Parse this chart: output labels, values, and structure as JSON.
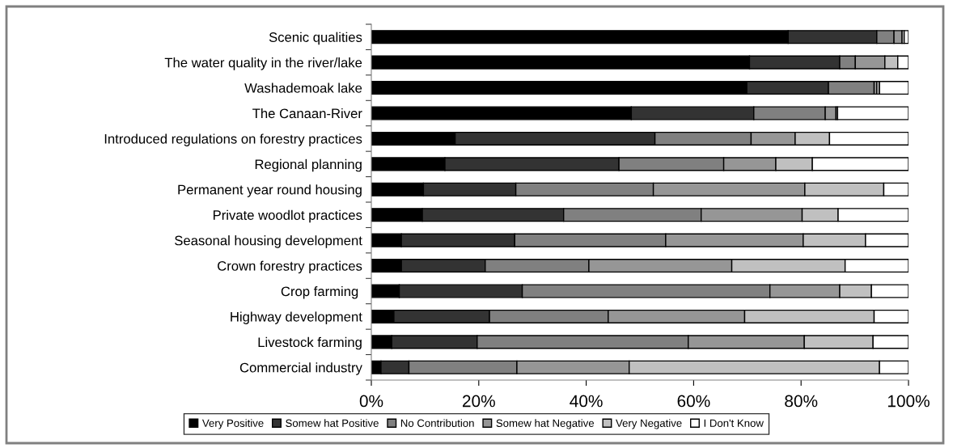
{
  "chart_data": {
    "type": "bar",
    "orientation": "horizontal",
    "stacked": true,
    "categories": [
      "Scenic qualities",
      "The water quality in the river/lake",
      "Washademoak lake",
      "The Canaan-River",
      "Introduced regulations on forestry practices",
      "Regional planning",
      "Permanent year round housing",
      "Private woodlot practices",
      "Seasonal housing development",
      "Crown forestry practices",
      "Crop farming ",
      "Highway development",
      "Livestock farming",
      "Commercial industry"
    ],
    "series": [
      {
        "name": "Very Positive",
        "color": "#000000",
        "values": [
          77.6,
          70.4,
          69.9,
          48.4,
          15.6,
          13.7,
          9.7,
          9.5,
          5.6,
          5.6,
          5.2,
          4.2,
          3.8,
          1.8
        ]
      },
      {
        "name": "Somew hat Positive",
        "color": "#333333",
        "values": [
          16.5,
          16.8,
          15.2,
          22.8,
          37.2,
          32.4,
          17.2,
          26.3,
          21.1,
          15.6,
          22.9,
          17.8,
          15.9,
          5.2
        ]
      },
      {
        "name": "No Contribution",
        "color": "#808080",
        "values": [
          3.2,
          2.9,
          8.5,
          13.3,
          17.9,
          19.5,
          25.6,
          25.6,
          28.1,
          19.3,
          46.1,
          22.1,
          39.3,
          20.1
        ]
      },
      {
        "name": "Somew hat Negative",
        "color": "#969696",
        "values": [
          1.5,
          5.5,
          0.5,
          2.0,
          8.2,
          9.7,
          28.2,
          18.8,
          25.6,
          26.6,
          13.0,
          25.4,
          21.6,
          20.9
        ]
      },
      {
        "name": "Very Negative",
        "color": "#c0c0c0",
        "values": [
          0.4,
          2.4,
          0.5,
          0.3,
          6.4,
          6.8,
          14.7,
          6.7,
          11.6,
          21.1,
          5.9,
          24.1,
          12.8,
          46.6
        ]
      },
      {
        "name": "I Don't Know",
        "color": "#ffffff",
        "values": [
          0.8,
          2.0,
          5.4,
          13.2,
          14.7,
          17.9,
          4.6,
          13.1,
          8.0,
          11.8,
          6.9,
          6.4,
          6.6,
          5.4
        ]
      }
    ],
    "xlim": [
      0,
      100
    ],
    "xticks": [
      {
        "value": 0,
        "label": "0%"
      },
      {
        "value": 20,
        "label": "20%"
      },
      {
        "value": 40,
        "label": "40%"
      },
      {
        "value": 60,
        "label": "60%"
      },
      {
        "value": 80,
        "label": "80%"
      },
      {
        "value": 100,
        "label": "100%"
      }
    ],
    "grid": false,
    "legend": "bottom"
  }
}
